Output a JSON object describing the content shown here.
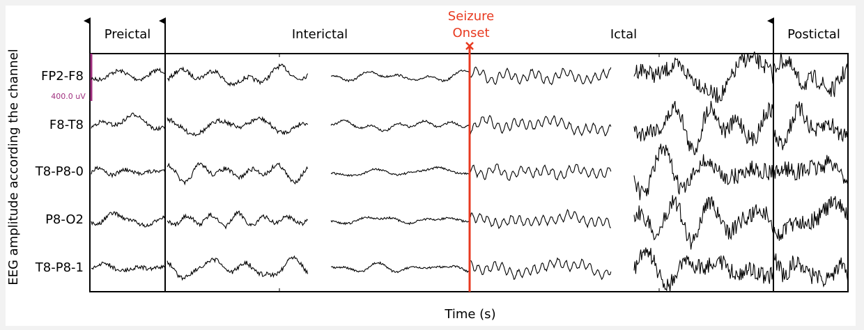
{
  "axes": {
    "y_label": "EEG amplitude according the channel",
    "x_label": "Time (s)"
  },
  "channels": [
    "FP2-F8",
    "F8-T8",
    "T8-P8-0",
    "P8-O2",
    "T8-P8-1"
  ],
  "phases": [
    "Preictal",
    "Interictal",
    "Ictal",
    "Postictal"
  ],
  "onset": {
    "lines": [
      "Seizure",
      "Onset"
    ]
  },
  "scale_bar": {
    "label": "400.0 uV"
  }
}
